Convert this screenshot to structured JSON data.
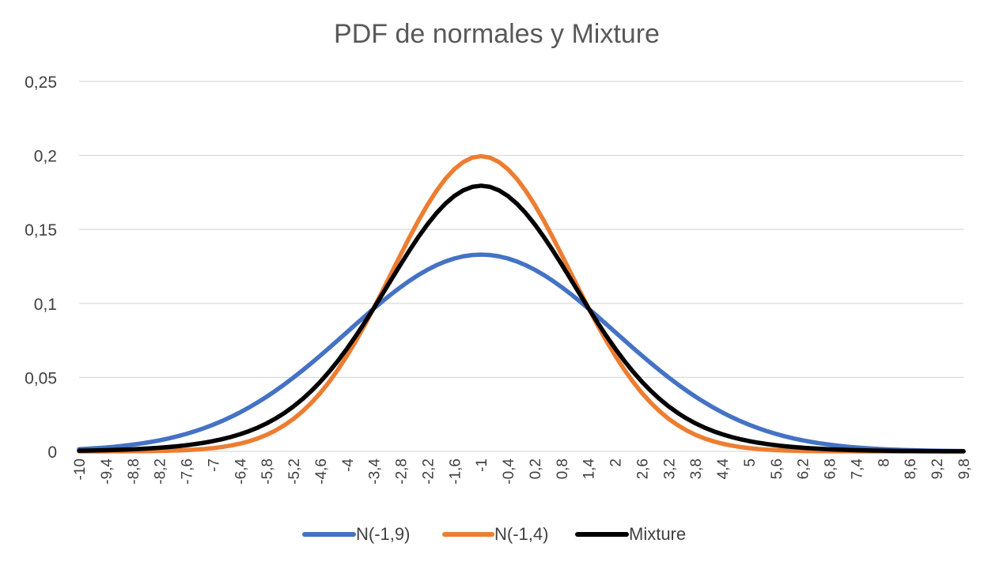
{
  "chart_data": {
    "type": "line",
    "title": "PDF de normales y Mixture",
    "xlabel": "",
    "ylabel": "",
    "x_range": [
      -10,
      9.8
    ],
    "x_step": 0.2,
    "ylim": [
      0,
      0.25
    ],
    "yticks": [
      "0",
      "0,05",
      "0,1",
      "0,15",
      "0,2",
      "0,25"
    ],
    "xticks": [
      "-10",
      "-9,4",
      "-8,8",
      "-8,2",
      "-7,6",
      "-7",
      "-6,4",
      "-5,8",
      "-5,2",
      "-4,6",
      "-4",
      "-3,4",
      "-2,8",
      "-2,2",
      "-1,6",
      "-1",
      "-0,4",
      "0,2",
      "0,8",
      "1,4",
      "2",
      "2,6",
      "3,2",
      "3,8",
      "4,4",
      "5",
      "5,6",
      "6,2",
      "6,8",
      "7,4",
      "8",
      "8,6",
      "9,2",
      "9,8"
    ],
    "grid": true,
    "legend_position": "bottom",
    "series": [
      {
        "name": "N(-1,9)",
        "color": "#4472C4",
        "mean": -1,
        "variance": 9
      },
      {
        "name": "N(-1,4)",
        "color": "#ED7D31",
        "mean": -1,
        "variance": 4
      },
      {
        "name": "Mixture",
        "color": "#000000",
        "mixture_weights": [
          0.3,
          0.7
        ]
      }
    ]
  }
}
